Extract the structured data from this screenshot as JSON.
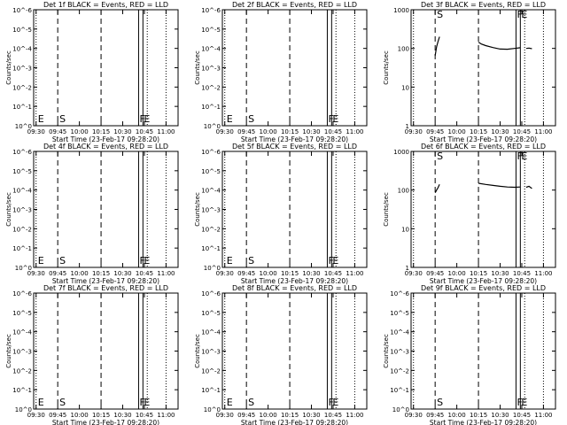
{
  "chart_data": [
    {
      "type": "line",
      "title": "Det 1f BLACK = Events, RED = LLD",
      "xlabel": "Start Time (23-Feb-17 09:28:20)",
      "ylabel": "Counts/sec",
      "xticks": [
        "09:30",
        "09:45",
        "10:00",
        "10:15",
        "10:30",
        "10:45",
        "11:00"
      ],
      "yscale": "log",
      "yticks": [
        "10^0",
        "10^-1",
        "10^-2",
        "10^-3",
        "10^-4",
        "10^-5",
        "10^-6"
      ],
      "ylim": [
        1e-06,
        1
      ],
      "markers": [
        {
          "label": "E",
          "at": "09:30"
        },
        {
          "label": "S",
          "at": "09:45"
        },
        {
          "label": "F",
          "at": "10:44"
        },
        {
          "label": "E",
          "at": "10:47"
        }
      ],
      "series": []
    },
    {
      "type": "line",
      "title": "Det 2f BLACK = Events, RED = LLD",
      "xlabel": "Start Time (23-Feb-17 09:28:20)",
      "ylabel": "Counts/sec",
      "xticks": [
        "09:30",
        "09:45",
        "10:00",
        "10:15",
        "10:30",
        "10:45",
        "11:00"
      ],
      "yscale": "log",
      "yticks": [
        "10^0",
        "10^-1",
        "10^-2",
        "10^-3",
        "10^-4",
        "10^-5",
        "10^-6"
      ],
      "ylim": [
        1e-06,
        1
      ],
      "markers": [
        {
          "label": "E",
          "at": "09:30"
        },
        {
          "label": "S",
          "at": "09:45"
        },
        {
          "label": "F",
          "at": "10:44"
        },
        {
          "label": "E",
          "at": "10:47"
        }
      ],
      "series": []
    },
    {
      "type": "line",
      "title": "Det 3f BLACK = Events, RED = LLD",
      "xlabel": "Start Time (23-Feb-17 09:28:20)",
      "ylabel": "Counts/sec",
      "xticks": [
        "09:30",
        "09:45",
        "10:00",
        "10:15",
        "10:30",
        "10:45",
        "11:00"
      ],
      "yscale": "log",
      "yticks": [
        "1000",
        "100",
        "10",
        "1"
      ],
      "ylim": [
        1,
        1000
      ],
      "markers": [
        {
          "label": "S",
          "at": "09:45"
        },
        {
          "label": "F",
          "at": "10:44"
        },
        {
          "label": "E",
          "at": "10:47"
        }
      ],
      "series": [
        {
          "points": [
            [
              "09:45",
              65
            ],
            [
              "09:46",
              110
            ],
            [
              "09:47",
              150
            ],
            [
              "09:48",
              200
            ]
          ]
        },
        {
          "points": [
            [
              "10:15",
              145
            ],
            [
              "10:17",
              130
            ],
            [
              "10:20",
              118
            ],
            [
              "10:25",
              105
            ],
            [
              "10:30",
              96
            ],
            [
              "10:35",
              95
            ],
            [
              "10:40",
              100
            ],
            [
              "10:44",
              104
            ]
          ]
        },
        {
          "points": [
            [
              "10:48",
              100
            ],
            [
              "10:50",
              102
            ],
            [
              "10:52",
              98
            ]
          ]
        }
      ]
    },
    {
      "type": "line",
      "title": "Det 4f BLACK = Events, RED = LLD",
      "xlabel": "Start Time (23-Feb-17 09:28:20)",
      "ylabel": "Counts/sec",
      "xticks": [
        "09:30",
        "09:45",
        "10:00",
        "10:15",
        "10:30",
        "10:45",
        "11:00"
      ],
      "yscale": "log",
      "yticks": [
        "10^0",
        "10^-1",
        "10^-2",
        "10^-3",
        "10^-4",
        "10^-5",
        "10^-6"
      ],
      "ylim": [
        1e-06,
        1
      ],
      "markers": [
        {
          "label": "E",
          "at": "09:30"
        },
        {
          "label": "S",
          "at": "09:45"
        },
        {
          "label": "F",
          "at": "10:44"
        },
        {
          "label": "E",
          "at": "10:47"
        }
      ],
      "series": []
    },
    {
      "type": "line",
      "title": "Det 5f BLACK = Events, RED = LLD",
      "xlabel": "Start Time (23-Feb-17 09:28:20)",
      "ylabel": "Counts/sec",
      "xticks": [
        "09:30",
        "09:45",
        "10:00",
        "10:15",
        "10:30",
        "10:45",
        "11:00"
      ],
      "yscale": "log",
      "yticks": [
        "10^0",
        "10^-1",
        "10^-2",
        "10^-3",
        "10^-4",
        "10^-5",
        "10^-6"
      ],
      "ylim": [
        1e-06,
        1
      ],
      "markers": [
        {
          "label": "E",
          "at": "09:30"
        },
        {
          "label": "S",
          "at": "09:45"
        },
        {
          "label": "F",
          "at": "10:44"
        },
        {
          "label": "E",
          "at": "10:47"
        }
      ],
      "series": []
    },
    {
      "type": "line",
      "title": "Det 6f BLACK = Events, RED = LLD",
      "xlabel": "Start Time (23-Feb-17 09:28:20)",
      "ylabel": "Counts/sec",
      "xticks": [
        "09:30",
        "09:45",
        "10:00",
        "10:15",
        "10:30",
        "10:45",
        "11:00"
      ],
      "yscale": "log",
      "yticks": [
        "1000",
        "100",
        "10",
        "1"
      ],
      "ylim": [
        1,
        1000
      ],
      "markers": [
        {
          "label": "S",
          "at": "09:45"
        },
        {
          "label": "F",
          "at": "10:44"
        },
        {
          "label": "E",
          "at": "10:47"
        }
      ],
      "series": [
        {
          "points": [
            [
              "09:45",
              85
            ],
            [
              "09:46",
              100
            ],
            [
              "09:47",
              115
            ],
            [
              "09:48",
              140
            ]
          ]
        },
        {
          "points": [
            [
              "10:15",
              150
            ],
            [
              "10:20",
              140
            ],
            [
              "10:25",
              132
            ],
            [
              "10:30",
              125
            ],
            [
              "10:35",
              120
            ],
            [
              "10:40",
              118
            ],
            [
              "10:44",
              120
            ]
          ]
        },
        {
          "points": [
            [
              "10:48",
              118
            ],
            [
              "10:50",
              125
            ],
            [
              "10:52",
              110
            ]
          ]
        }
      ]
    },
    {
      "type": "line",
      "title": "Det 7f BLACK = Events, RED = LLD",
      "xlabel": "Start Time (23-Feb-17 09:28:20)",
      "ylabel": "Counts/sec",
      "xticks": [
        "09:30",
        "09:45",
        "10:00",
        "10:15",
        "10:30",
        "10:45",
        "11:00"
      ],
      "yscale": "log",
      "yticks": [
        "10^0",
        "10^-1",
        "10^-2",
        "10^-3",
        "10^-4",
        "10^-5",
        "10^-6"
      ],
      "ylim": [
        1e-06,
        1
      ],
      "markers": [
        {
          "label": "E",
          "at": "09:30"
        },
        {
          "label": "S",
          "at": "09:45"
        },
        {
          "label": "F",
          "at": "10:44"
        },
        {
          "label": "E",
          "at": "10:47"
        }
      ],
      "series": []
    },
    {
      "type": "line",
      "title": "Det 8f BLACK = Events, RED = LLD",
      "xlabel": "Start Time (23-Feb-17 09:28:20)",
      "ylabel": "Counts/sec",
      "xticks": [
        "09:30",
        "09:45",
        "10:00",
        "10:15",
        "10:30",
        "10:45",
        "11:00"
      ],
      "yscale": "log",
      "yticks": [
        "10^0",
        "10^-1",
        "10^-2",
        "10^-3",
        "10^-4",
        "10^-5",
        "10^-6"
      ],
      "ylim": [
        1e-06,
        1
      ],
      "markers": [
        {
          "label": "E",
          "at": "09:30"
        },
        {
          "label": "S",
          "at": "09:45"
        },
        {
          "label": "F",
          "at": "10:44"
        },
        {
          "label": "E",
          "at": "10:47"
        }
      ],
      "series": []
    },
    {
      "type": "line",
      "title": "Det 9f BLACK = Events, RED = LLD",
      "xlabel": "Start Time (23-Feb-17 09:28:20)",
      "ylabel": "Counts/sec",
      "xticks": [
        "09:30",
        "09:45",
        "10:00",
        "10:15",
        "10:30",
        "10:45",
        "11:00"
      ],
      "yscale": "log",
      "yticks": [
        "10^0",
        "10^-1",
        "10^-2",
        "10^-3",
        "10^-4",
        "10^-5",
        "10^-6"
      ],
      "ylim": [
        1e-06,
        1
      ],
      "markers": [
        {
          "label": "S",
          "at": "09:45"
        },
        {
          "label": "F",
          "at": "10:44"
        },
        {
          "label": "E",
          "at": "10:47"
        }
      ],
      "series": []
    }
  ]
}
